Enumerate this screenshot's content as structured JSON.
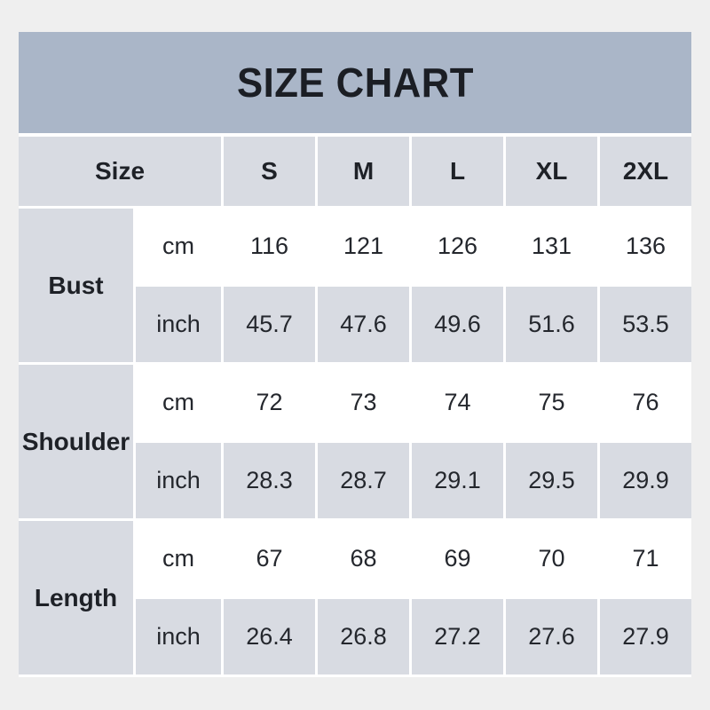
{
  "title": "SIZE CHART",
  "colors": {
    "page_bg": "#efefef",
    "title_bar_bg": "#aab6c8",
    "cell_gray_bg": "#d8dbe2",
    "cell_white_bg": "#ffffff",
    "text": "#24272d"
  },
  "chart_data": {
    "type": "table",
    "title": "SIZE CHART",
    "columns": [
      "Size",
      "S",
      "M",
      "L",
      "XL",
      "2XL"
    ],
    "row_groups": [
      "Bust",
      "Shoulder",
      "Length"
    ],
    "units": [
      "cm",
      "inch"
    ],
    "rows": [
      {
        "measurement": "Bust",
        "unit": "cm",
        "values": [
          116,
          121,
          126,
          131,
          136
        ]
      },
      {
        "measurement": "Bust",
        "unit": "inch",
        "values": [
          45.7,
          47.6,
          49.6,
          51.6,
          53.5
        ]
      },
      {
        "measurement": "Shoulder",
        "unit": "cm",
        "values": [
          72,
          73,
          74,
          75,
          76
        ]
      },
      {
        "measurement": "Shoulder",
        "unit": "inch",
        "values": [
          28.3,
          28.7,
          29.1,
          29.5,
          29.9
        ]
      },
      {
        "measurement": "Length",
        "unit": "cm",
        "values": [
          67,
          68,
          69,
          70,
          71
        ]
      },
      {
        "measurement": "Length",
        "unit": "inch",
        "values": [
          26.4,
          26.8,
          27.2,
          27.6,
          27.9
        ]
      }
    ]
  }
}
